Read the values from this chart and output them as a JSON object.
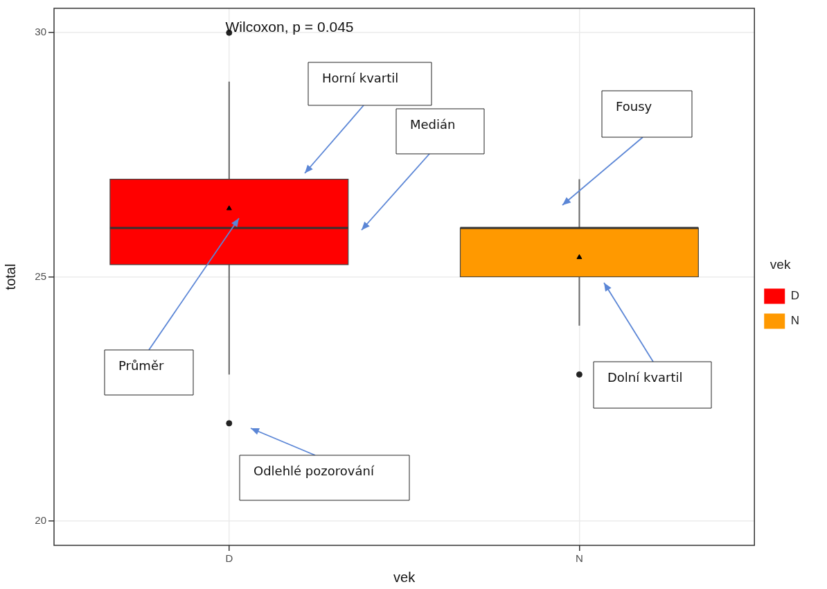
{
  "chart_data": {
    "type": "box",
    "xlabel": "vek",
    "ylabel": "total",
    "legend_title": "vek",
    "legend": "right",
    "grid": true,
    "categories": [
      "D",
      "N"
    ],
    "series": [
      {
        "name": "D",
        "color": "#ff0000",
        "boxes": [
          {
            "low": 23,
            "q1": 25.25,
            "median": 26,
            "q3": 27,
            "high": 29,
            "mean": 26.4,
            "outliers": [
              22,
              30
            ]
          },
          null
        ]
      },
      {
        "name": "N",
        "color": "#ff9900",
        "boxes": [
          null,
          {
            "low": 24,
            "q1": 25,
            "median": 26,
            "q3": 26,
            "high": 27,
            "mean": 25.4,
            "outliers": [
              23
            ]
          }
        ]
      }
    ],
    "ylim": [
      19.5,
      30.5
    ],
    "yticks": [
      20,
      25,
      30
    ],
    "annotations": [
      "Wilcoxon, p = 0.045",
      "Horní kvartil",
      "Medián",
      "Průměr",
      "Odlehlé pozorování",
      "Fousy",
      "Dolní kvartil"
    ]
  }
}
